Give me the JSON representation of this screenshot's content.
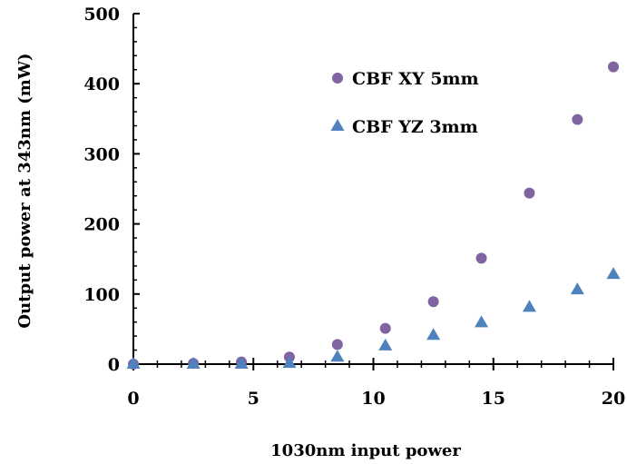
{
  "chart_data": {
    "type": "scatter",
    "xlabel": "1030nm input power",
    "ylabel": "Output power at 343nm (mW)",
    "xlim": [
      0,
      20
    ],
    "ylim": [
      0,
      500
    ],
    "x_ticks": [
      "0",
      "5",
      "10",
      "15",
      "20"
    ],
    "y_ticks": [
      "0",
      "100",
      "200",
      "300",
      "400",
      "500"
    ],
    "grid": false,
    "legend_position": "top-right",
    "series": [
      {
        "name": "CBF XY 5mm",
        "marker": "circle",
        "color": "#8064A2",
        "x": [
          0,
          2.5,
          4.5,
          6.5,
          8.5,
          10.5,
          12.5,
          14.5,
          16.5,
          18.5,
          20
        ],
        "y": [
          0,
          1,
          3,
          10,
          28,
          51,
          89,
          151,
          244,
          349,
          424
        ]
      },
      {
        "name": "CBF YZ 3mm",
        "marker": "triangle",
        "color": "#4F81BD",
        "x": [
          0,
          2.5,
          4.5,
          6.5,
          8.5,
          10.5,
          12.5,
          14.5,
          16.5,
          18.5,
          20
        ],
        "y": [
          0,
          0,
          0,
          1,
          10,
          26,
          41,
          59,
          81,
          106,
          128
        ]
      }
    ]
  }
}
